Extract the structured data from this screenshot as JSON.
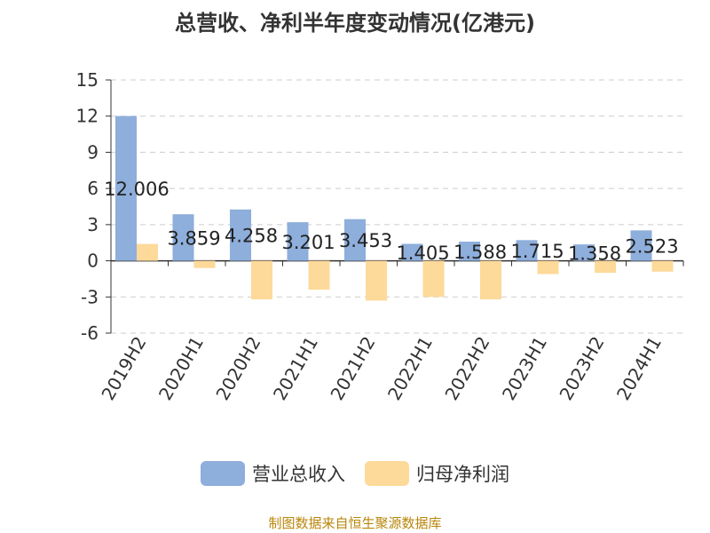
{
  "chart_data": {
    "type": "bar",
    "title": "总营收、净利半年度变动情况(亿港元)",
    "categories": [
      "2019H2",
      "2020H1",
      "2020H2",
      "2021H1",
      "2021H2",
      "2022H1",
      "2022H2",
      "2023H1",
      "2023H2",
      "2024H1"
    ],
    "series": [
      {
        "name": "营业总收入",
        "color": "#8eaedb",
        "values": [
          12.006,
          3.859,
          4.258,
          3.201,
          3.453,
          1.405,
          1.588,
          1.715,
          1.358,
          2.523
        ]
      },
      {
        "name": "归母净利润",
        "color": "#fdd99a",
        "values": [
          1.4,
          -0.6,
          -3.2,
          -2.4,
          -3.3,
          -3.0,
          -3.2,
          -1.1,
          -1.0,
          -0.9
        ]
      }
    ],
    "data_labels": [
      "12.006",
      "3.859",
      "4.258",
      "3.201",
      "3.453",
      "1.405",
      "1.588",
      "1.715",
      "1.358",
      "2.523"
    ],
    "ylim": [
      -6,
      15
    ],
    "yticks": [
      15,
      12,
      9,
      6,
      3,
      0,
      -3,
      -6
    ],
    "grid": true,
    "legend_position": "bottom"
  },
  "footer": "制图数据来自恒生聚源数据库"
}
